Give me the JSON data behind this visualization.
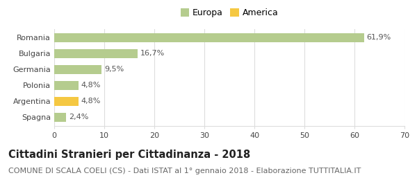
{
  "categories": [
    "Romania",
    "Bulgaria",
    "Germania",
    "Polonia",
    "Argentina",
    "Spagna"
  ],
  "values": [
    61.9,
    16.7,
    9.5,
    4.8,
    4.8,
    2.4
  ],
  "labels": [
    "61,9%",
    "16,7%",
    "9,5%",
    "4,8%",
    "4,8%",
    "2,4%"
  ],
  "bar_colors": [
    "#b5cc8e",
    "#b5cc8e",
    "#b5cc8e",
    "#b5cc8e",
    "#f5c842",
    "#b5cc8e"
  ],
  "legend_items": [
    {
      "label": "Europa",
      "color": "#b5cc8e"
    },
    {
      "label": "America",
      "color": "#f5c842"
    }
  ],
  "xlim": [
    0,
    70
  ],
  "xticks": [
    0,
    10,
    20,
    30,
    40,
    50,
    60,
    70
  ],
  "title": "Cittadini Stranieri per Cittadinanza - 2018",
  "subtitle": "COMUNE DI SCALA COELI (CS) - Dati ISTAT al 1° gennaio 2018 - Elaborazione TUTTITALIA.IT",
  "background_color": "#ffffff",
  "grid_color": "#dddddd",
  "bar_height": 0.55,
  "title_fontsize": 10.5,
  "subtitle_fontsize": 8,
  "label_fontsize": 8,
  "tick_fontsize": 8,
  "legend_fontsize": 9
}
